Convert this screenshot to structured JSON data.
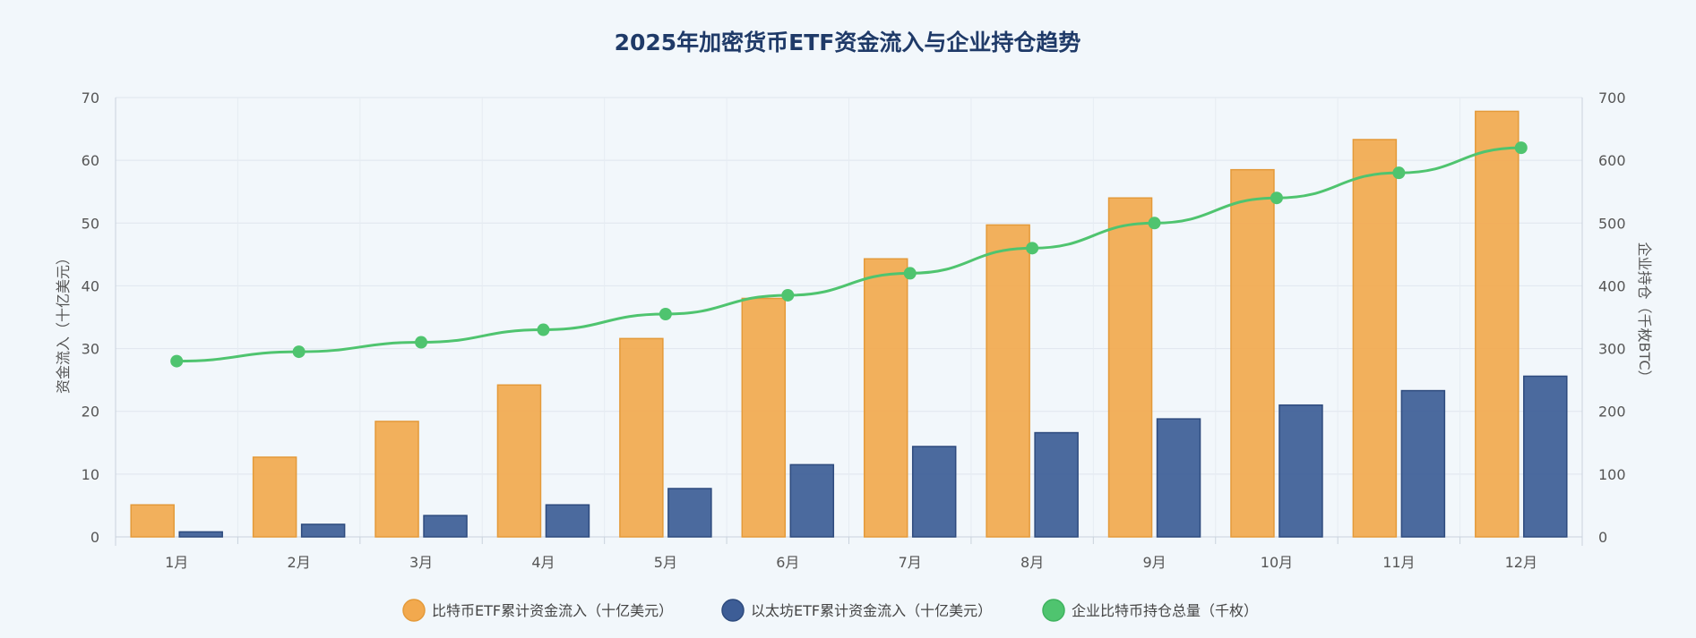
{
  "chart_data": {
    "type": "bar",
    "title": "2025年加密货币ETF资金流入与企业持仓趋势",
    "categories": [
      "1月",
      "2月",
      "3月",
      "4月",
      "5月",
      "6月",
      "7月",
      "8月",
      "9月",
      "10月",
      "11月",
      "12月"
    ],
    "series": [
      {
        "name": "比特币ETF累计资金流入（十亿美元）",
        "type": "bar",
        "axis": "left",
        "color": "#f2a94e",
        "values": [
          5.1,
          12.7,
          18.4,
          24.2,
          31.6,
          38.0,
          44.3,
          49.7,
          54.0,
          58.5,
          63.3,
          67.8
        ]
      },
      {
        "name": "以太坊ETF累计资金流入（十亿美元）",
        "type": "bar",
        "axis": "left",
        "color": "#3d5d96",
        "values": [
          0.8,
          2.0,
          3.4,
          5.1,
          7.7,
          11.5,
          14.4,
          16.6,
          18.8,
          21.0,
          23.3,
          25.6
        ]
      },
      {
        "name": "企业比特币持仓总量（千枚）",
        "type": "line",
        "axis": "right",
        "color": "#4fc46f",
        "values": [
          280,
          295,
          310,
          330,
          355,
          385,
          420,
          460,
          500,
          540,
          580,
          620
        ]
      }
    ],
    "ylabel": "资金流入（十亿美元）",
    "y2label": "企业持仓（千枚BTC）",
    "ylim": [
      0,
      70
    ],
    "y2lim": [
      0,
      700
    ],
    "yticks": [
      "0",
      "10",
      "20",
      "30",
      "40",
      "50",
      "60",
      "70"
    ],
    "y2ticks": [
      "0",
      "100",
      "200",
      "300",
      "400",
      "500",
      "600",
      "700"
    ],
    "grid": true,
    "legend_position": "bottom"
  }
}
